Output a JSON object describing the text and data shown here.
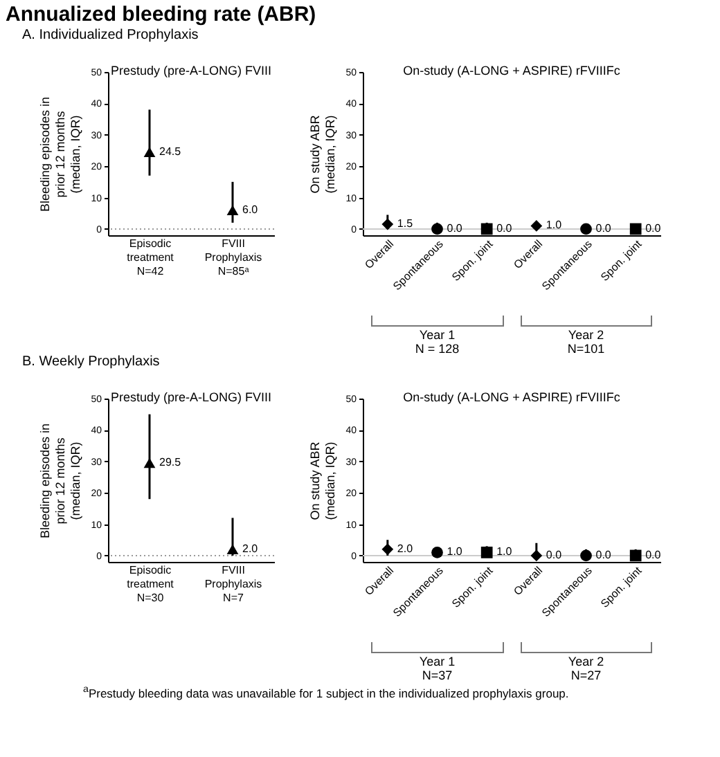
{
  "chart_data": [
    {
      "type": "scatter",
      "title": "Prestudy (pre-A-LONG) FVIII",
      "ylabel": "Bleeding episodes in prior 12 months (median, IQR)",
      "annotations": [
        "Annualized bleeding rate (ABR)",
        "A. Individualized Prophylaxis"
      ],
      "categories": [
        "Episodic\ntreatment\nN=42",
        "FVIII\nProphylaxis\nN=85ᵃ"
      ],
      "ylim": [
        -2,
        50
      ],
      "yticks": [
        0,
        10,
        20,
        30,
        40,
        50
      ],
      "grid": false,
      "series": [
        {
          "color": "#000000",
          "marker": "triangle",
          "values": [
            24.5,
            6.0
          ],
          "errors": [
            [
              17,
              38
            ],
            [
              2,
              15
            ]
          ],
          "value_labels": [
            "24.5",
            "6.0"
          ]
        }
      ],
      "ref_lines": [
        {
          "axis": "y",
          "value": 0,
          "color": "#999999",
          "line_style": "dotted"
        }
      ]
    },
    {
      "type": "scatter",
      "title": "On-study (A-LONG + ASPIRE) rFVIIIFc",
      "ylabel": "On study ABR (median, IQR)",
      "annotations": [
        "Year 1",
        "N = 128",
        "Year 2",
        "N=101"
      ],
      "categories": [
        "Overall",
        "Spontaneous",
        "Spon. joint",
        "Overall",
        "Spontaneous",
        "Spon. joint"
      ],
      "ylim": [
        -2,
        50
      ],
      "yticks": [
        0,
        10,
        20,
        30,
        40,
        50
      ],
      "grid": false,
      "series": [
        {
          "color": "#000000",
          "marker": "diamond",
          "values": [
            1.5,
            null,
            null,
            1.0,
            null,
            null
          ],
          "errors": [
            [
              0,
              4.5
            ],
            null,
            null,
            null,
            null,
            null
          ],
          "value_labels": [
            "1.5",
            null,
            null,
            "1.0",
            null,
            null
          ]
        },
        {
          "color": "#000000",
          "marker": "circle",
          "values": [
            null,
            0.0,
            null,
            null,
            0.0,
            null
          ],
          "errors": [
            null,
            [
              0,
              2
            ],
            null,
            null,
            null,
            null
          ],
          "value_labels": [
            null,
            "0.0",
            null,
            null,
            "0.0",
            null
          ]
        },
        {
          "color": "#000000",
          "marker": "square",
          "values": [
            null,
            null,
            0.0,
            null,
            null,
            0.0
          ],
          "errors": [
            null,
            null,
            [
              0,
              2
            ],
            null,
            null,
            null
          ],
          "value_labels": [
            null,
            null,
            "0.0",
            null,
            null,
            "0.0"
          ]
        }
      ],
      "ref_lines": [
        {
          "axis": "y",
          "value": 0,
          "color": "#cccccc",
          "line_style": "solid"
        }
      ]
    },
    {
      "type": "scatter",
      "title": "Prestudy (pre-A-LONG) FVIII",
      "ylabel": "Bleeding episodes in prior 12 months (median, IQR)",
      "annotations": [
        "B. Weekly Prophylaxis",
        "$^{a}$Prestudy bleeding data was unavailable for 1 subject in the individualized prophylaxis group."
      ],
      "categories": [
        "Episodic\ntreatment\nN=30",
        "FVIII\nProphylaxis\nN=7"
      ],
      "ylim": [
        -2,
        50
      ],
      "yticks": [
        0,
        10,
        20,
        30,
        40,
        50
      ],
      "grid": false,
      "series": [
        {
          "color": "#000000",
          "marker": "triangle",
          "values": [
            29.5,
            2.0
          ],
          "errors": [
            [
              18,
              45
            ],
            [
              0,
              12
            ]
          ],
          "value_labels": [
            "29.5",
            "2.0"
          ]
        }
      ],
      "ref_lines": [
        {
          "axis": "y",
          "value": 0,
          "color": "#999999",
          "line_style": "dotted"
        }
      ]
    },
    {
      "type": "scatter",
      "title": "On-study (A-LONG + ASPIRE) rFVIIIFc",
      "ylabel": "On study ABR (median, IQR)",
      "annotations": [
        "Year 1",
        "N=37",
        "Year 2",
        "N=27"
      ],
      "categories": [
        "Overall",
        "Spontaneous",
        "Spon. joint",
        "Overall",
        "Spontaneous",
        "Spon. joint"
      ],
      "ylim": [
        -2,
        50
      ],
      "yticks": [
        0,
        10,
        20,
        30,
        40,
        50
      ],
      "grid": false,
      "series": [
        {
          "color": "#000000",
          "marker": "diamond",
          "values": [
            2.0,
            null,
            null,
            0.0,
            null,
            null
          ],
          "errors": [
            [
              0,
              5
            ],
            null,
            null,
            [
              0,
              4
            ],
            null,
            null
          ],
          "value_labels": [
            "2.0",
            null,
            null,
            "0.0",
            null,
            null
          ]
        },
        {
          "color": "#000000",
          "marker": "circle",
          "values": [
            null,
            1.0,
            null,
            null,
            0.0,
            null
          ],
          "errors": [
            null,
            [
              0,
              2.5
            ],
            null,
            null,
            [
              0,
              2
            ],
            null
          ],
          "value_labels": [
            null,
            "1.0",
            null,
            null,
            "0.0",
            null
          ]
        },
        {
          "color": "#000000",
          "marker": "square",
          "values": [
            null,
            null,
            1.0,
            null,
            null,
            0.0
          ],
          "errors": [
            null,
            null,
            [
              0,
              3
            ],
            null,
            null,
            [
              0,
              2
            ]
          ],
          "value_labels": [
            null,
            null,
            "1.0",
            null,
            null,
            "0.0"
          ]
        }
      ],
      "ref_lines": [
        {
          "axis": "y",
          "value": 0,
          "color": "#cccccc",
          "line_style": "solid"
        }
      ]
    }
  ]
}
